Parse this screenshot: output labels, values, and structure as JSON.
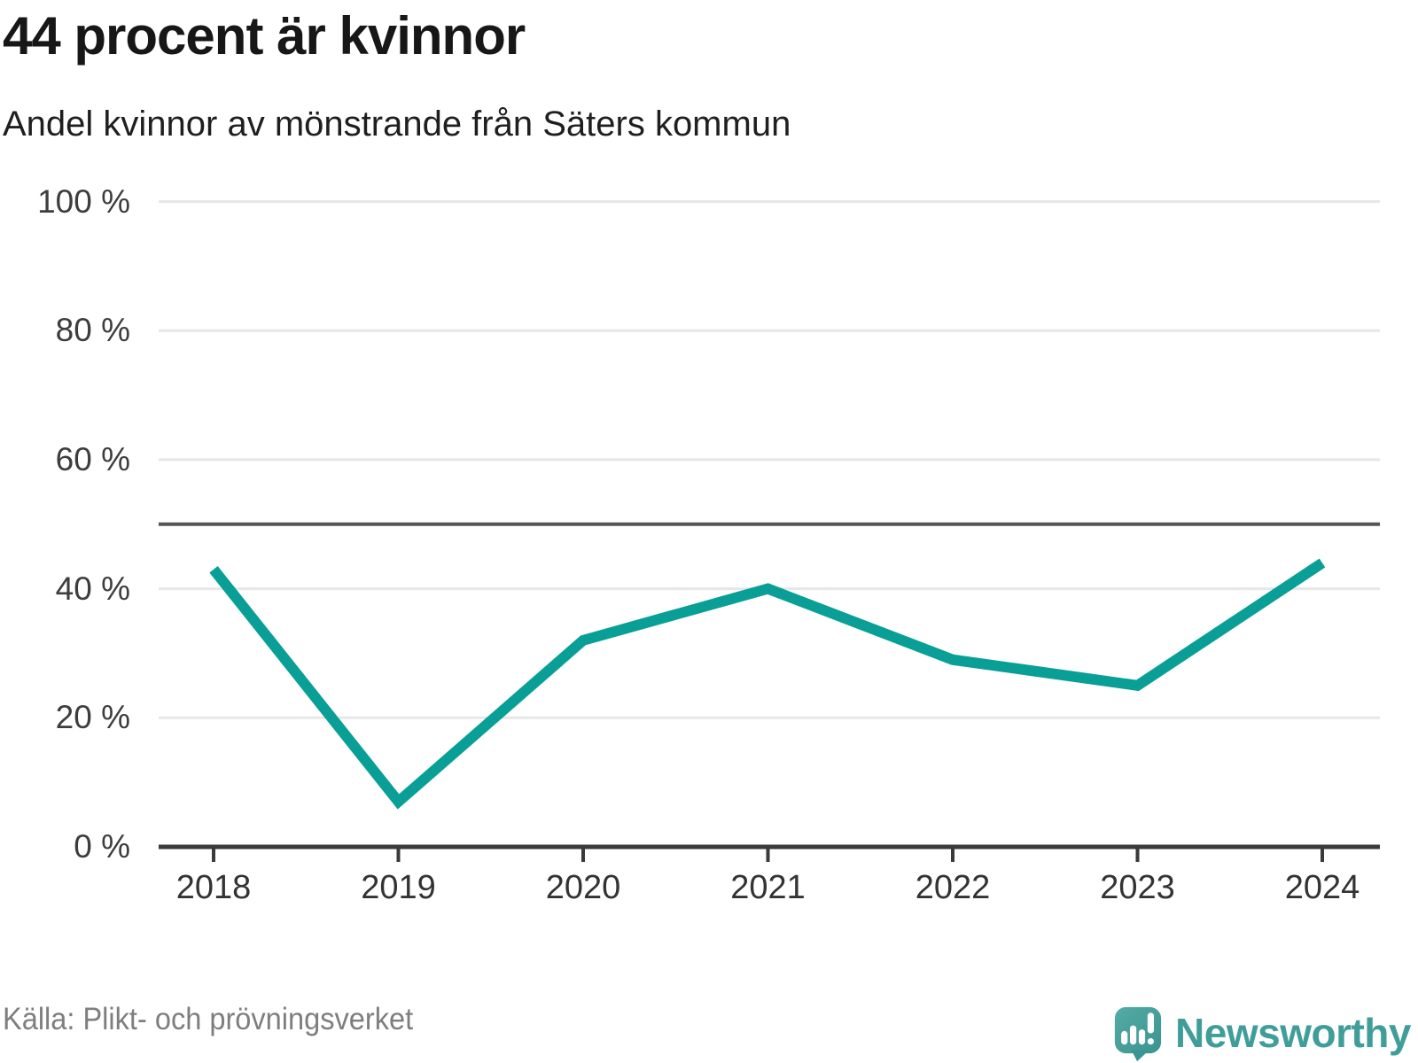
{
  "header": {
    "title": "44 procent är kvinnor",
    "subtitle": "Andel kvinnor av mönstrande från Säters kommun"
  },
  "chart_data": {
    "type": "line",
    "x": [
      "2018",
      "2019",
      "2020",
      "2021",
      "2022",
      "2023",
      "2024"
    ],
    "series": [
      {
        "name": "Andel kvinnor av mönstrande",
        "values": [
          43,
          7,
          32,
          40,
          29,
          25,
          44
        ]
      }
    ],
    "unit": "%",
    "ylim": [
      0,
      100
    ],
    "yticks": [
      0,
      20,
      40,
      60,
      80,
      100
    ],
    "ytick_suffix": " %",
    "reference_line": {
      "value": 50
    },
    "grid": "horizontal",
    "colors": {
      "line": "#0a9f96",
      "grid": "#e7e7e7",
      "reference": "#555558",
      "axis": "#3a3a3a",
      "tick_label": "#3d3d3d"
    }
  },
  "footer": {
    "source": "Källa: Plikt- och prövningsverket",
    "brand": {
      "name": "Newsworthy",
      "color": "#3f9e99"
    }
  }
}
